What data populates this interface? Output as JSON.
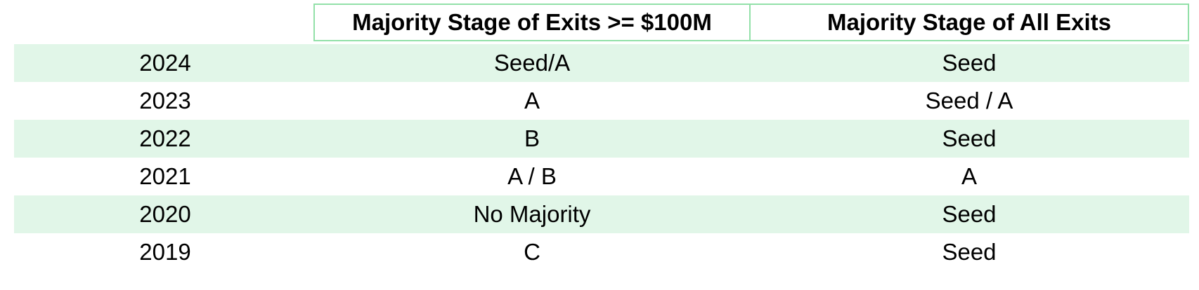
{
  "table": {
    "headers": [
      "",
      "Majority Stage of Exits >= $100M",
      "Majority Stage of All Exits"
    ],
    "rows": [
      {
        "year": "2024",
        "exits_100m": "Seed/A",
        "all_exits": "Seed"
      },
      {
        "year": "2023",
        "exits_100m": "A",
        "all_exits": "Seed / A"
      },
      {
        "year": "2022",
        "exits_100m": "B",
        "all_exits": "Seed"
      },
      {
        "year": "2021",
        "exits_100m": "A / B",
        "all_exits": "A"
      },
      {
        "year": "2020",
        "exits_100m": "No Majority",
        "all_exits": "Seed"
      },
      {
        "year": "2019",
        "exits_100m": "C",
        "all_exits": "Seed"
      }
    ]
  },
  "colors": {
    "header_border": "#92e0a8",
    "row_shading": "#e1f6e8"
  }
}
